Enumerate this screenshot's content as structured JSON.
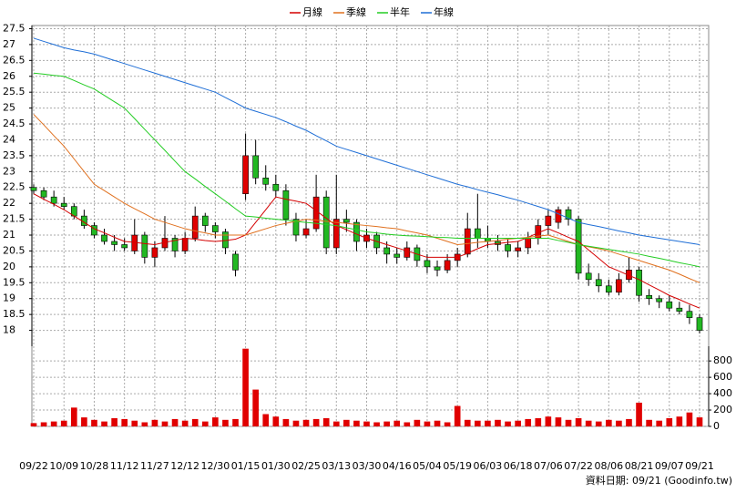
{
  "chart_data": {
    "type": "candlestick",
    "categories": [
      "09/22",
      null,
      null,
      "10/09",
      null,
      null,
      "10/28",
      null,
      null,
      "11/12",
      null,
      null,
      "11/27",
      null,
      null,
      "12/12",
      null,
      null,
      "12/30",
      null,
      null,
      "01/15",
      null,
      null,
      "01/30",
      null,
      null,
      "02/25",
      null,
      null,
      "03/13",
      null,
      null,
      "03/30",
      null,
      null,
      "04/16",
      null,
      null,
      "05/04",
      null,
      null,
      "05/19",
      null,
      null,
      "06/03",
      null,
      null,
      "06/18",
      null,
      null,
      "07/06",
      null,
      null,
      "07/22",
      null,
      null,
      "08/06",
      null,
      null,
      "08/21",
      null,
      null,
      "09/07",
      null,
      null,
      "09/21"
    ],
    "open": [
      22.5,
      22.4,
      22.2,
      22.0,
      21.9,
      21.6,
      21.3,
      21.0,
      20.8,
      20.7,
      20.5,
      21.0,
      20.3,
      20.6,
      20.9,
      20.5,
      20.9,
      21.6,
      21.3,
      21.1,
      20.4,
      22.3,
      23.5,
      22.8,
      22.6,
      22.4,
      21.5,
      21.0,
      21.2,
      22.2,
      20.6,
      21.5,
      21.4,
      20.8,
      21.0,
      20.6,
      20.4,
      20.3,
      20.6,
      20.2,
      20.0,
      19.9,
      20.2,
      20.4,
      21.2,
      20.9,
      20.8,
      20.7,
      20.5,
      20.6,
      20.9,
      21.3,
      21.4,
      21.8,
      21.5,
      19.8,
      19.6,
      19.4,
      19.2,
      19.6,
      19.9,
      19.1,
      19.0,
      18.9,
      18.7,
      18.6,
      18.4
    ],
    "high": [
      22.6,
      22.5,
      22.4,
      22.2,
      22.0,
      21.8,
      21.4,
      21.2,
      21.0,
      20.9,
      21.5,
      21.1,
      20.8,
      21.6,
      21.0,
      21.1,
      21.9,
      21.7,
      21.4,
      21.2,
      20.5,
      24.2,
      24.0,
      23.2,
      22.9,
      22.6,
      21.7,
      21.5,
      22.9,
      22.4,
      22.9,
      21.8,
      21.5,
      21.2,
      21.1,
      20.8,
      20.6,
      20.8,
      20.7,
      20.4,
      20.2,
      20.4,
      20.6,
      21.7,
      22.3,
      21.3,
      21.0,
      20.9,
      20.8,
      21.1,
      21.5,
      21.8,
      21.9,
      21.9,
      21.6,
      20.1,
      19.8,
      19.6,
      19.8,
      20.3,
      20.0,
      19.3,
      19.1,
      19.1,
      18.9,
      18.8,
      18.5
    ],
    "low": [
      22.3,
      22.1,
      21.9,
      21.8,
      21.5,
      21.2,
      20.9,
      20.7,
      20.5,
      20.5,
      20.4,
      20.1,
      20.0,
      20.5,
      20.3,
      20.4,
      20.8,
      21.1,
      20.9,
      20.4,
      19.7,
      22.1,
      22.6,
      22.4,
      22.2,
      21.3,
      20.8,
      20.9,
      21.1,
      20.4,
      20.4,
      21.1,
      20.5,
      20.6,
      20.4,
      20.1,
      20.1,
      20.2,
      20.0,
      19.8,
      19.7,
      19.8,
      20.0,
      20.3,
      20.6,
      20.6,
      20.5,
      20.3,
      20.3,
      20.4,
      20.7,
      21.0,
      21.2,
      21.3,
      19.6,
      19.4,
      19.2,
      19.1,
      19.1,
      19.5,
      18.9,
      18.8,
      18.7,
      18.6,
      18.5,
      18.2,
      17.9
    ],
    "close": [
      22.4,
      22.2,
      22.0,
      21.9,
      21.6,
      21.3,
      21.0,
      20.8,
      20.7,
      20.6,
      21.0,
      20.3,
      20.6,
      20.9,
      20.5,
      20.9,
      21.6,
      21.3,
      21.1,
      20.6,
      19.9,
      23.5,
      22.8,
      22.6,
      22.4,
      21.5,
      21.0,
      21.2,
      22.2,
      20.6,
      21.5,
      21.4,
      20.8,
      21.0,
      20.6,
      20.4,
      20.3,
      20.6,
      20.2,
      20.0,
      19.9,
      20.2,
      20.4,
      21.2,
      20.9,
      20.8,
      20.7,
      20.5,
      20.6,
      20.9,
      21.3,
      21.6,
      21.8,
      21.5,
      19.8,
      19.6,
      19.4,
      19.2,
      19.6,
      19.9,
      19.1,
      19.0,
      18.9,
      18.7,
      18.6,
      18.4,
      18.0
    ],
    "up_color": "#e00000",
    "down_color": "#22b822",
    "series": [
      {
        "name": "月線",
        "color": "#d40000",
        "values": [
          22.3,
          22.13,
          21.97,
          21.8,
          21.6,
          21.4,
          21.2,
          21.07,
          20.93,
          20.8,
          20.77,
          20.73,
          20.7,
          20.77,
          20.83,
          20.9,
          20.87,
          20.83,
          20.8,
          20.83,
          20.87,
          21.0,
          21.4,
          21.8,
          22.2,
          22.13,
          22.07,
          22.0,
          21.77,
          21.53,
          21.3,
          21.17,
          21.03,
          20.9,
          20.8,
          20.7,
          20.6,
          20.5,
          20.4,
          20.3,
          20.3,
          20.3,
          20.3,
          20.43,
          20.57,
          20.7,
          20.73,
          20.77,
          20.8,
          20.93,
          21.07,
          21.2,
          21.07,
          20.93,
          20.8,
          20.53,
          20.27,
          20.0,
          19.87,
          19.73,
          19.6,
          19.43,
          19.27,
          19.1,
          18.97,
          18.83,
          18.7
        ]
      },
      {
        "name": "季線",
        "color": "#e0701e",
        "values": [
          24.8,
          24.47,
          24.13,
          23.8,
          23.4,
          23.0,
          22.6,
          22.4,
          22.2,
          22.0,
          21.83,
          21.67,
          21.5,
          21.4,
          21.3,
          21.2,
          21.13,
          21.07,
          21.0,
          21.0,
          21.0,
          21.0,
          21.1,
          21.2,
          21.3,
          21.37,
          21.43,
          21.5,
          21.47,
          21.43,
          21.4,
          21.37,
          21.33,
          21.3,
          21.27,
          21.23,
          21.2,
          21.13,
          21.07,
          21.0,
          20.9,
          20.8,
          20.7,
          20.73,
          20.77,
          20.8,
          20.83,
          20.87,
          20.9,
          20.93,
          20.97,
          21.0,
          20.9,
          20.8,
          20.7,
          20.63,
          20.57,
          20.5,
          20.4,
          20.3,
          20.2,
          20.1,
          20.0,
          19.9,
          19.77,
          19.63,
          19.5
        ]
      },
      {
        "name": "半年",
        "color": "#22cc22",
        "values": [
          26.1,
          26.07,
          26.03,
          26.0,
          25.87,
          25.73,
          25.6,
          25.4,
          25.2,
          25.0,
          24.67,
          24.33,
          24.0,
          23.67,
          23.33,
          23.0,
          22.77,
          22.53,
          22.3,
          22.07,
          21.83,
          21.6,
          21.57,
          21.53,
          21.5,
          21.47,
          21.43,
          21.4,
          21.37,
          21.33,
          21.3,
          21.23,
          21.17,
          21.1,
          21.07,
          21.03,
          21.0,
          20.98,
          20.97,
          20.95,
          20.93,
          20.92,
          20.9,
          20.9,
          20.9,
          20.9,
          20.9,
          20.9,
          20.9,
          20.9,
          20.9,
          20.9,
          20.83,
          20.77,
          20.7,
          20.65,
          20.6,
          20.55,
          20.5,
          20.45,
          20.4,
          20.33,
          20.27,
          20.2,
          20.13,
          20.07,
          20.0
        ]
      },
      {
        "name": "年線",
        "color": "#1e6ed6",
        "values": [
          27.2,
          27.1,
          27.0,
          26.9,
          26.83,
          26.77,
          26.7,
          26.6,
          26.5,
          26.4,
          26.3,
          26.2,
          26.1,
          26.0,
          25.9,
          25.8,
          25.7,
          25.6,
          25.5,
          25.33,
          25.17,
          25.0,
          24.9,
          24.8,
          24.7,
          24.57,
          24.43,
          24.3,
          24.13,
          23.97,
          23.8,
          23.7,
          23.6,
          23.5,
          23.4,
          23.3,
          23.2,
          23.1,
          23.0,
          22.9,
          22.8,
          22.7,
          22.6,
          22.52,
          22.43,
          22.35,
          22.27,
          22.18,
          22.1,
          22.0,
          21.9,
          21.8,
          21.67,
          21.53,
          21.4,
          21.33,
          21.27,
          21.2,
          21.13,
          21.07,
          21.0,
          20.95,
          20.9,
          20.85,
          20.8,
          20.75,
          20.7
        ]
      }
    ],
    "ylim": [
      17.5,
      27.6
    ],
    "yticks": [
      18,
      18.5,
      19,
      19.5,
      20,
      20.5,
      21,
      21.5,
      22,
      22.5,
      23,
      23.5,
      24,
      24.5,
      25,
      25.5,
      26,
      26.5,
      27,
      27.5
    ],
    "volume": {
      "values": [
        40,
        50,
        60,
        70,
        230,
        110,
        80,
        60,
        100,
        90,
        70,
        50,
        80,
        60,
        90,
        70,
        90,
        60,
        110,
        80,
        90,
        950,
        450,
        150,
        120,
        90,
        70,
        80,
        90,
        100,
        60,
        80,
        70,
        60,
        50,
        60,
        70,
        50,
        80,
        60,
        70,
        50,
        250,
        80,
        70,
        70,
        80,
        60,
        70,
        90,
        100,
        120,
        110,
        80,
        100,
        70,
        60,
        80,
        70,
        90,
        290,
        80,
        70,
        100,
        120,
        170,
        110
      ],
      "color": "#e00000",
      "ylim": [
        0,
        980
      ],
      "yticks": [
        0,
        200,
        400,
        600,
        800
      ]
    },
    "grid": true,
    "legend": "top",
    "footer": "資料日期: 09/21 (Goodinfo.tw)"
  }
}
